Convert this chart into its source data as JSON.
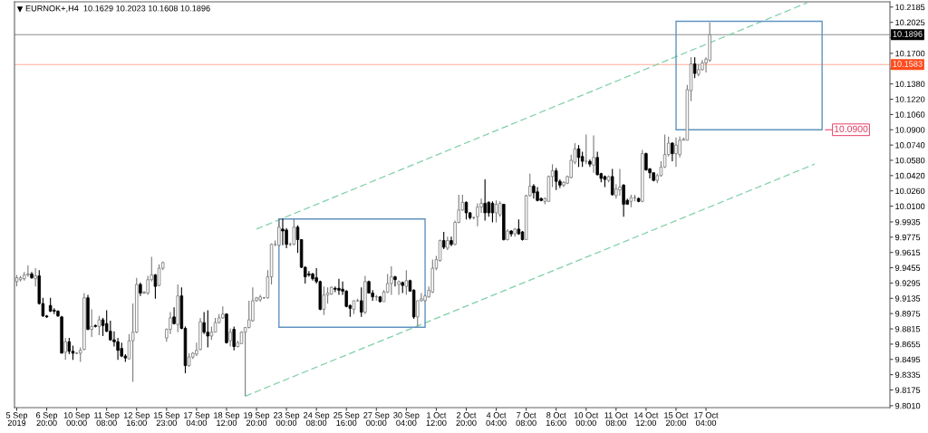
{
  "chart_data": {
    "type": "candlestick",
    "title": "EURNOK+,H4  10.1629 10.2023 10.1608 10.1896",
    "categories": [
      "5 Sep 2019",
      null,
      null,
      null,
      null,
      null,
      null,
      null,
      "6 Sep 20:00",
      null,
      null,
      null,
      null,
      null,
      null,
      null,
      "10 Sep 00:00",
      null,
      null,
      null,
      null,
      null,
      null,
      null,
      "11 Sep 08:00",
      null,
      null,
      null,
      null,
      null,
      null,
      null,
      "12 Sep 16:00",
      null,
      null,
      null,
      null,
      null,
      null,
      null,
      "15 Sep 23:00",
      null,
      null,
      null,
      null,
      null,
      null,
      null,
      "17 Sep 04:00",
      null,
      null,
      null,
      null,
      null,
      null,
      null,
      "18 Sep 12:00",
      null,
      null,
      null,
      null,
      null,
      null,
      null,
      "19 Sep 20:00",
      null,
      null,
      null,
      null,
      null,
      null,
      null,
      "23 Sep 00:00",
      null,
      null,
      null,
      null,
      null,
      null,
      null,
      "24 Sep 08:00",
      null,
      null,
      null,
      null,
      null,
      null,
      null,
      "25 Sep 16:00",
      null,
      null,
      null,
      null,
      null,
      null,
      null,
      "27 Sep 00:00",
      null,
      null,
      null,
      null,
      null,
      null,
      null,
      "30 Sep 04:00",
      null,
      null,
      null,
      null,
      null,
      null,
      null,
      "1 Oct 12:00",
      null,
      null,
      null,
      null,
      null,
      null,
      null,
      "2 Oct 20:00",
      null,
      null,
      null,
      null,
      null,
      null,
      null,
      "4 Oct 04:00",
      null,
      null,
      null,
      null,
      null,
      null,
      null,
      "7 Oct 08:00",
      null,
      null,
      null,
      null,
      null,
      null,
      null,
      "8 Oct 16:00",
      null,
      null,
      null,
      null,
      null,
      null,
      null,
      "10 Oct 00:00",
      null,
      null,
      null,
      null,
      null,
      null,
      null,
      "11 Oct 08:00",
      null,
      null,
      null,
      null,
      null,
      null,
      null,
      "14 Oct 12:00",
      null,
      null,
      null,
      null,
      null,
      null,
      null,
      "15 Oct 20:00",
      null,
      null,
      null,
      null,
      null,
      null,
      null,
      "17 Oct 04:00",
      null,
      null,
      null,
      null,
      null,
      null,
      null,
      null,
      null,
      null,
      null,
      null,
      null,
      null,
      null,
      null,
      null,
      null,
      null,
      null,
      null,
      null,
      null,
      null,
      null,
      null,
      null,
      null,
      null,
      null,
      null,
      null,
      null,
      null,
      null,
      null,
      null,
      null,
      null,
      null,
      null,
      null,
      null,
      null,
      null,
      null,
      null,
      null,
      null
    ],
    "ohlc": [
      [
        9.931,
        9.938,
        9.926,
        9.935
      ],
      [
        9.933,
        9.937,
        9.931,
        9.935
      ],
      [
        9.934,
        9.941,
        9.932,
        9.938
      ],
      [
        9.938,
        9.948,
        9.936,
        9.939
      ],
      [
        9.939,
        9.941,
        9.934,
        9.935
      ],
      [
        9.934,
        9.945,
        9.926,
        9.937
      ],
      [
        9.937,
        9.943,
        9.907,
        9.908
      ],
      [
        9.908,
        9.914,
        9.894,
        9.895
      ],
      [
        9.895,
        9.896,
        9.893,
        9.894
      ],
      [
        9.906,
        9.914,
        9.899,
        9.9
      ],
      [
        9.901,
        9.903,
        9.897,
        9.9
      ],
      [
        9.9,
        9.901,
        9.894,
        9.895
      ],
      [
        9.894,
        9.895,
        9.856,
        9.856
      ],
      [
        9.857,
        9.872,
        9.849,
        9.868
      ],
      [
        9.868,
        9.872,
        9.855,
        9.858
      ],
      [
        9.858,
        9.864,
        9.849,
        9.856
      ],
      [
        9.856,
        9.857,
        9.855,
        9.856
      ],
      [
        9.856,
        9.862,
        9.847,
        9.859
      ],
      [
        9.86,
        9.919,
        9.859,
        9.914
      ],
      [
        9.914,
        9.917,
        9.88,
        9.881
      ],
      [
        9.881,
        9.902,
        9.873,
        9.884
      ],
      [
        9.885,
        9.886,
        9.883,
        9.884
      ],
      [
        9.884,
        9.895,
        9.875,
        9.891
      ],
      [
        9.891,
        9.893,
        9.874,
        9.885
      ],
      [
        9.887,
        9.901,
        9.878,
        9.879
      ],
      [
        9.879,
        9.89,
        9.869,
        9.87
      ],
      [
        9.87,
        9.879,
        9.863,
        9.868
      ],
      [
        9.868,
        9.872,
        9.849,
        9.859
      ],
      [
        9.861,
        9.867,
        9.852,
        9.853
      ],
      [
        9.853,
        9.855,
        9.847,
        9.851
      ],
      [
        9.85,
        9.876,
        9.85,
        9.869
      ],
      [
        9.869,
        9.908,
        9.826,
        9.878
      ],
      [
        9.878,
        9.935,
        9.877,
        9.928
      ],
      [
        9.928,
        9.93,
        9.916,
        9.919
      ],
      [
        9.919,
        9.921,
        9.918,
        9.92
      ],
      [
        9.919,
        9.937,
        9.917,
        9.933
      ],
      [
        9.933,
        9.957,
        9.931,
        9.938
      ],
      [
        9.938,
        9.939,
        9.913,
        9.926
      ],
      [
        9.927,
        9.949,
        9.926,
        9.945
      ],
      [
        9.945,
        9.952,
        9.943,
        9.951
      ],
      [
        9.872,
        9.882,
        9.868,
        9.881
      ],
      [
        9.881,
        9.899,
        9.876,
        9.893
      ],
      [
        9.894,
        9.904,
        9.886,
        9.887
      ],
      [
        9.886,
        9.928,
        9.878,
        9.916
      ],
      [
        9.916,
        9.925,
        9.881,
        9.882
      ],
      [
        9.882,
        9.884,
        9.835,
        9.843
      ],
      [
        9.843,
        9.856,
        9.842,
        9.852
      ],
      [
        9.852,
        9.857,
        9.85,
        9.856
      ],
      [
        9.855,
        9.867,
        9.853,
        9.859
      ],
      [
        9.86,
        9.893,
        9.859,
        9.889
      ],
      [
        9.888,
        9.899,
        9.876,
        9.878
      ],
      [
        9.878,
        9.901,
        9.862,
        9.874
      ],
      [
        9.874,
        9.884,
        9.87,
        9.878
      ],
      [
        9.878,
        9.893,
        9.878,
        9.888
      ],
      [
        9.888,
        9.897,
        9.887,
        9.893
      ],
      [
        9.893,
        9.905,
        9.892,
        9.897
      ],
      [
        9.897,
        9.898,
        9.866,
        9.867
      ],
      [
        9.869,
        9.882,
        9.863,
        9.878
      ],
      [
        9.881,
        9.884,
        9.859,
        9.863
      ],
      [
        9.863,
        9.869,
        9.862,
        9.867
      ],
      [
        9.866,
        9.879,
        9.866,
        9.878
      ],
      [
        9.878,
        9.883,
        9.811,
        9.883
      ],
      [
        9.883,
        9.911,
        9.882,
        9.891
      ],
      [
        9.89,
        9.925,
        9.889,
        9.911
      ],
      [
        9.911,
        9.915,
        9.91,
        9.914
      ],
      [
        9.912,
        9.917,
        9.91,
        9.915
      ],
      [
        9.914,
        9.915,
        9.913,
        9.914
      ],
      [
        9.914,
        9.943,
        9.913,
        9.936
      ],
      [
        9.936,
        9.971,
        9.928,
        9.97
      ],
      [
        9.97,
        9.974,
        9.968,
        9.97
      ],
      [
        9.969,
        9.997,
        9.968,
        9.988
      ],
      [
        9.986,
        9.997,
        9.969,
        9.984
      ],
      [
        9.985,
        9.987,
        9.966,
        9.97
      ],
      [
        9.97,
        9.972,
        9.968,
        9.97
      ],
      [
        9.97,
        9.997,
        9.969,
        9.988
      ],
      [
        9.988,
        9.99,
        9.961,
        9.975
      ],
      [
        9.975,
        9.975,
        9.945,
        9.946
      ],
      [
        9.946,
        9.947,
        9.929,
        9.936
      ],
      [
        9.939,
        9.942,
        9.936,
        9.938
      ],
      [
        9.939,
        9.94,
        9.932,
        9.934
      ],
      [
        9.935,
        9.945,
        9.929,
        9.931
      ],
      [
        9.931,
        9.932,
        9.901,
        9.902
      ],
      [
        9.902,
        9.926,
        9.896,
        9.917
      ],
      [
        9.917,
        9.925,
        9.908,
        9.919
      ],
      [
        9.918,
        9.926,
        9.917,
        9.925
      ],
      [
        9.924,
        9.926,
        9.92,
        9.923
      ],
      [
        9.924,
        9.934,
        9.917,
        9.922
      ],
      [
        9.923,
        9.931,
        9.917,
        9.921
      ],
      [
        9.921,
        9.922,
        9.904,
        9.905
      ],
      [
        9.906,
        9.907,
        9.894,
        9.903
      ],
      [
        9.902,
        9.911,
        9.897,
        9.911
      ],
      [
        9.911,
        9.913,
        9.91,
        9.911
      ],
      [
        9.911,
        9.925,
        9.894,
        9.899
      ],
      [
        9.899,
        9.937,
        9.897,
        9.931
      ],
      [
        9.931,
        9.932,
        9.919,
        9.919
      ],
      [
        9.919,
        9.922,
        9.911,
        9.915
      ],
      [
        9.915,
        9.917,
        9.911,
        9.915
      ],
      [
        9.915,
        9.916,
        9.909,
        9.91
      ],
      [
        9.91,
        9.922,
        9.91,
        9.92
      ],
      [
        9.92,
        9.939,
        9.919,
        9.929
      ],
      [
        9.929,
        9.947,
        9.917,
        9.936
      ],
      [
        9.936,
        9.937,
        9.926,
        9.933
      ],
      [
        9.928,
        9.932,
        9.917,
        9.931
      ],
      [
        9.93,
        9.931,
        9.919,
        9.927
      ],
      [
        9.926,
        9.943,
        9.917,
        9.932
      ],
      [
        9.932,
        9.933,
        9.921,
        9.921
      ],
      [
        9.922,
        9.923,
        9.892,
        9.894
      ],
      [
        9.894,
        9.911,
        9.884,
        9.911
      ],
      [
        9.911,
        9.919,
        9.91,
        9.913
      ],
      [
        9.911,
        9.917,
        9.91,
        9.916
      ],
      [
        9.915,
        9.926,
        9.914,
        9.922
      ],
      [
        9.92,
        9.954,
        9.919,
        9.945
      ],
      [
        9.945,
        9.958,
        9.943,
        9.954
      ],
      [
        9.953,
        9.975,
        9.952,
        9.974
      ],
      [
        9.974,
        9.983,
        9.965,
        9.967
      ],
      [
        9.966,
        9.978,
        9.964,
        9.974
      ],
      [
        9.974,
        9.978,
        9.968,
        9.97
      ],
      [
        9.97,
        9.995,
        9.969,
        9.993
      ],
      [
        9.993,
        10.022,
        9.992,
        10.006
      ],
      [
        10.006,
        10.022,
        10.005,
        10.014
      ],
      [
        10.014,
        10.015,
        9.996,
        10.003
      ],
      [
        10.003,
        10.004,
        9.996,
        9.998
      ],
      [
        9.998,
        9.999,
        9.996,
        9.998
      ],
      [
        9.999,
        10.013,
        9.989,
        10.009
      ],
      [
        10.009,
        10.018,
        10.003,
        10.013
      ],
      [
        10.013,
        10.038,
        9.995,
        10.003
      ],
      [
        10.014,
        10.015,
        9.999,
        10.003
      ],
      [
        10.013,
        10.015,
        9.993,
        10.003
      ],
      [
        10.003,
        10.016,
        9.993,
        10.012
      ],
      [
        10.001,
        10.015,
        9.999,
        10.013
      ],
      [
        10.012,
        10.012,
        9.974,
        9.975
      ],
      [
        9.975,
        9.986,
        9.974,
        9.984
      ],
      [
        9.984,
        9.985,
        9.978,
        9.981
      ],
      [
        9.981,
        9.987,
        9.978,
        9.986
      ],
      [
        9.986,
        9.996,
        9.98,
        9.981
      ],
      [
        9.983,
        9.984,
        9.974,
        9.975
      ],
      [
        9.975,
        10.022,
        9.975,
        10.021
      ],
      [
        10.021,
        10.044,
        10.02,
        10.031
      ],
      [
        10.031,
        10.033,
        10.018,
        10.024
      ],
      [
        10.025,
        10.03,
        10.015,
        10.016
      ],
      [
        10.018,
        10.019,
        10.015,
        10.016
      ],
      [
        10.015,
        10.019,
        10.012,
        10.018
      ],
      [
        10.015,
        10.042,
        10.015,
        10.041
      ],
      [
        10.041,
        10.054,
        10.03,
        10.047
      ],
      [
        10.047,
        10.05,
        10.027,
        10.036
      ],
      [
        10.036,
        10.038,
        10.029,
        10.032
      ],
      [
        10.032,
        10.036,
        10.03,
        10.035
      ],
      [
        10.034,
        10.042,
        10.033,
        10.041
      ],
      [
        10.04,
        10.064,
        10.039,
        10.058
      ],
      [
        10.056,
        10.076,
        10.054,
        10.07
      ],
      [
        10.07,
        10.074,
        10.051,
        10.061
      ],
      [
        10.062,
        10.067,
        10.051,
        10.057
      ],
      [
        10.057,
        10.085,
        10.054,
        10.057
      ],
      [
        10.057,
        10.059,
        10.051,
        10.054
      ],
      [
        10.053,
        10.084,
        10.045,
        10.061
      ],
      [
        10.061,
        10.067,
        10.042,
        10.043
      ],
      [
        10.044,
        10.045,
        10.035,
        10.039
      ],
      [
        10.041,
        10.042,
        10.03,
        10.038
      ],
      [
        10.037,
        10.042,
        10.035,
        10.041
      ],
      [
        10.041,
        10.049,
        10.021,
        10.022
      ],
      [
        10.021,
        10.033,
        10.018,
        10.028
      ],
      [
        10.027,
        10.049,
        10.021,
        10.03
      ],
      [
        10.032,
        10.033,
        9.999,
        10.012
      ],
      [
        10.016,
        10.018,
        10.012,
        10.012
      ],
      [
        10.015,
        10.022,
        10.009,
        10.019
      ],
      [
        10.019,
        10.022,
        10.015,
        10.019
      ],
      [
        10.018,
        10.019,
        10.014,
        10.015
      ],
      [
        10.015,
        10.069,
        10.014,
        10.065
      ],
      [
        10.065,
        10.066,
        10.047,
        10.048
      ],
      [
        10.049,
        10.05,
        10.039,
        10.045
      ],
      [
        10.045,
        10.045,
        10.036,
        10.037
      ],
      [
        10.037,
        10.044,
        10.034,
        10.042
      ],
      [
        10.042,
        10.057,
        10.041,
        10.051
      ],
      [
        10.051,
        10.085,
        10.05,
        10.064
      ],
      [
        10.064,
        10.083,
        10.062,
        10.076
      ],
      [
        10.076,
        10.077,
        10.057,
        10.065
      ],
      [
        10.065,
        10.082,
        10.051,
        10.074
      ],
      [
        10.064,
        10.083,
        10.061,
        10.079
      ],
      [
        10.079,
        10.082,
        10.079,
        10.08
      ],
      [
        10.079,
        10.137,
        10.079,
        10.132
      ],
      [
        10.131,
        10.166,
        10.12,
        10.159
      ],
      [
        10.159,
        10.166,
        10.144,
        10.149
      ],
      [
        10.148,
        10.159,
        10.146,
        10.153
      ],
      [
        10.153,
        10.163,
        10.152,
        10.16
      ],
      [
        10.16,
        10.166,
        10.15,
        10.164
      ],
      [
        10.1629,
        10.2023,
        10.1608,
        10.1896
      ],
      null,
      null,
      null,
      null,
      null,
      null,
      null,
      null,
      null,
      null,
      null,
      null,
      null,
      null,
      null,
      null,
      null,
      null,
      null,
      null,
      null,
      null,
      null,
      null,
      null,
      null,
      null,
      null,
      null,
      null,
      null,
      null,
      null,
      null,
      null,
      null,
      null,
      null,
      null,
      null,
      null,
      null,
      null,
      null,
      null,
      null,
      null,
      null
    ],
    "series": [
      {
        "type": "line",
        "color": "#80d0a8",
        "values": [
          null,
          null,
          null,
          null,
          null,
          null,
          null,
          null,
          null,
          null,
          null,
          null,
          null,
          null,
          null,
          null,
          null,
          null,
          null,
          null,
          null,
          null,
          null,
          null,
          null,
          null,
          null,
          null,
          null,
          null,
          null,
          null,
          null,
          null,
          null,
          null,
          null,
          null,
          null,
          null,
          null,
          null,
          null,
          null,
          null,
          null,
          null,
          null,
          null,
          null,
          null,
          null,
          null,
          null,
          null,
          null,
          null,
          null,
          null,
          null,
          null,
          null,
          null,
          null,
          9.986,
          null,
          null,
          null,
          null,
          null,
          null,
          null,
          null,
          null,
          null,
          null,
          null,
          null,
          null,
          null,
          null,
          null,
          null,
          null,
          null,
          null,
          null,
          null,
          null,
          null,
          null,
          null,
          null,
          null,
          null,
          null,
          null,
          null,
          null,
          null,
          null,
          null,
          null,
          null,
          null,
          null,
          null,
          null,
          null,
          null,
          null,
          null,
          null,
          null,
          null,
          null,
          null,
          null,
          null,
          null,
          null,
          null,
          null,
          null,
          null,
          null,
          null,
          null,
          null,
          null,
          null,
          null,
          null,
          null,
          null,
          null,
          null,
          null,
          null,
          null,
          null,
          null,
          null,
          null,
          null,
          null,
          null,
          null,
          null,
          null,
          null,
          null,
          null,
          null,
          null,
          null,
          null,
          null,
          null,
          null,
          null,
          null,
          null,
          null,
          null,
          null,
          null,
          null,
          null,
          null,
          null,
          null,
          null,
          null,
          null,
          null,
          null,
          null,
          null,
          null,
          null,
          null,
          null,
          null,
          null,
          null,
          null,
          null,
          null,
          null,
          null,
          null,
          null,
          null,
          null,
          null,
          null,
          null,
          null,
          null,
          null,
          null,
          null,
          null,
          null,
          null,
          null,
          null,
          null,
          null,
          null,
          10.223,
          null,
          null,
          null,
          null,
          null,
          null,
          null,
          null,
          null,
          null,
          null,
          null,
          null,
          null,
          null,
          null,
          null,
          null,
          null,
          null,
          null,
          null
        ]
      },
      {
        "type": "line",
        "color": "#80d0a8",
        "values": [
          null,
          null,
          null,
          null,
          null,
          null,
          null,
          null,
          null,
          null,
          null,
          null,
          null,
          null,
          null,
          null,
          null,
          null,
          null,
          null,
          null,
          null,
          null,
          null,
          null,
          null,
          null,
          null,
          null,
          null,
          null,
          null,
          null,
          null,
          null,
          null,
          null,
          null,
          null,
          null,
          null,
          null,
          null,
          null,
          null,
          null,
          null,
          null,
          null,
          null,
          null,
          null,
          null,
          null,
          null,
          null,
          null,
          null,
          null,
          null,
          null,
          9.811,
          null,
          null,
          null,
          null,
          null,
          null,
          null,
          null,
          null,
          null,
          null,
          null,
          null,
          null,
          null,
          null,
          null,
          null,
          null,
          null,
          null,
          null,
          null,
          null,
          null,
          null,
          null,
          null,
          null,
          null,
          null,
          null,
          null,
          null,
          null,
          null,
          null,
          null,
          null,
          null,
          null,
          null,
          null,
          null,
          null,
          null,
          null,
          null,
          null,
          null,
          null,
          null,
          null,
          null,
          null,
          null,
          null,
          null,
          null,
          null,
          null,
          null,
          null,
          null,
          null,
          null,
          null,
          null,
          null,
          null,
          null,
          null,
          null,
          null,
          null,
          null,
          null,
          null,
          null,
          null,
          null,
          null,
          null,
          null,
          null,
          null,
          null,
          null,
          null,
          null,
          null,
          null,
          null,
          null,
          null,
          null,
          null,
          null,
          null,
          null,
          null,
          null,
          null,
          null,
          null,
          null,
          null,
          null,
          null,
          null,
          null,
          null,
          null,
          null,
          null,
          null,
          null,
          null,
          null,
          null,
          null,
          null,
          null,
          null,
          null,
          null,
          null,
          null,
          null,
          null,
          null,
          null,
          null,
          null,
          null,
          null,
          null,
          null,
          null,
          null,
          null,
          null,
          null,
          null,
          null,
          null,
          null,
          null,
          null,
          null,
          null,
          10.054,
          null,
          null,
          null,
          null,
          null,
          null,
          null,
          null,
          null,
          null,
          null,
          null,
          null,
          null,
          null,
          null,
          null,
          null,
          null,
          null
        ]
      }
    ],
    "line_style": "dashed",
    "ylim": [
      9.799,
      10.224
    ],
    "yticks": [
      10.2185,
      10.2025,
      {
        "value": 10.1865,
        "label": null
      },
      {
        "value": 10.17,
        "label": "10.1700"
      },
      {
        "value": 10.154,
        "label": null
      },
      {
        "value": 10.138,
        "label": "10.1380"
      },
      {
        "value": 10.122,
        "label": "10.1220"
      },
      {
        "value": 10.106,
        "label": "10.1060"
      },
      {
        "value": 10.09,
        "label": "10.0900"
      },
      {
        "value": 10.074,
        "label": "10.0740"
      },
      {
        "value": 10.058,
        "label": "10.0580"
      },
      {
        "value": 10.042,
        "label": "10.0420"
      },
      {
        "value": 10.026,
        "label": "10.0260"
      },
      {
        "value": 10.01,
        "label": "10.0100"
      },
      9.9935,
      9.9775,
      9.9615,
      9.9455,
      9.9295,
      9.9135,
      9.8975,
      9.8815,
      9.8655,
      9.8495,
      9.8335,
      9.8175,
      {
        "value": 9.801,
        "label": "9.8010"
      }
    ],
    "ref_lines": [
      {
        "axis": "y",
        "value": 10.1896,
        "label": "10.1896",
        "color": "#000000"
      },
      {
        "axis": "y",
        "value": 10.1583,
        "label": "10.1583",
        "color": "#ff4a1c"
      }
    ],
    "annotations": [
      {
        "text": "10.0900",
        "y": 10.09
      }
    ]
  }
}
